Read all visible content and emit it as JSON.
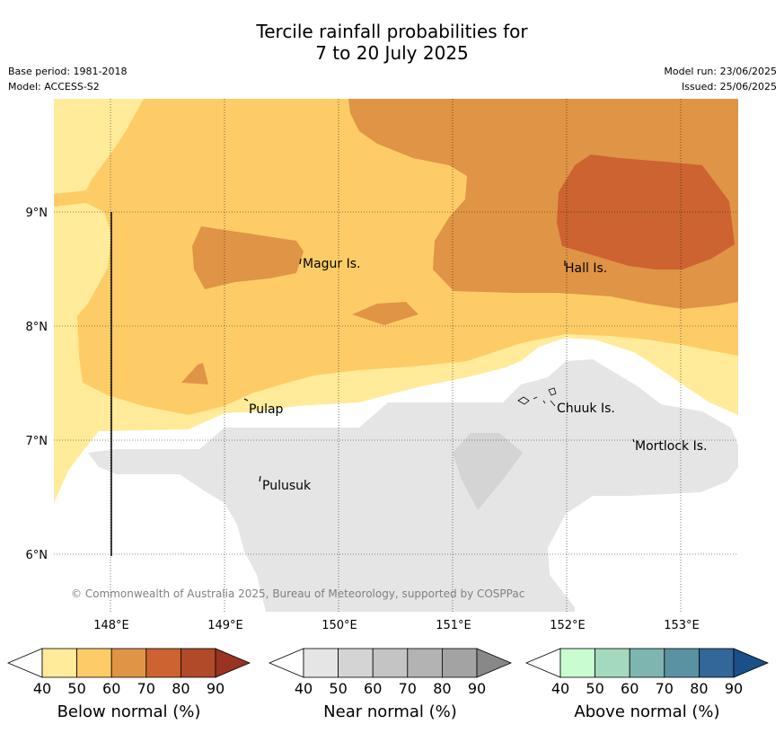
{
  "title_line1": "Tercile rainfall probabilities for",
  "title_line2": "7 to 20 July 2025",
  "base_period": "Base period: 1981-2018",
  "model": "Model: ACCESS-S2",
  "model_run": "Model run: 23/06/2025",
  "issued": "Issued: 25/06/2025",
  "copyright": "© Commonwealth of Australia 2025, Bureau of Meteorology, supported by COSPPac",
  "lon_ticks": [
    "148°E",
    "149°E",
    "150°E",
    "151°E",
    "152°E",
    "153°E"
  ],
  "lat_ticks": [
    "9°N",
    "8°N",
    "7°N",
    "6°N"
  ],
  "places": {
    "magur": "Magur Is.",
    "hall": "Hall Is.",
    "pulap": "Pulap",
    "chuuk": "Chuuk Is.",
    "mortlock": "Mortlock Is.",
    "pulusuk": "Pulusuk"
  },
  "colorbars": {
    "below": {
      "label": "Below normal (%)",
      "ticks": [
        "40",
        "50",
        "60",
        "70",
        "80",
        "90"
      ],
      "colors": [
        "#ffffff",
        "#ffeb99",
        "#fecc66",
        "#e09445",
        "#cc6330",
        "#b04a28",
        "#993322"
      ]
    },
    "near": {
      "label": "Near normal (%)",
      "ticks": [
        "40",
        "50",
        "60",
        "70",
        "80",
        "90"
      ],
      "colors": [
        "#ffffff",
        "#e5e5e5",
        "#d4d4d4",
        "#c4c4c4",
        "#b3b3b3",
        "#a3a3a3",
        "#888888"
      ]
    },
    "above": {
      "label": "Above normal (%)",
      "ticks": [
        "40",
        "50",
        "60",
        "70",
        "80",
        "90"
      ],
      "colors": [
        "#ffffff",
        "#c9fdd0",
        "#a5d9be",
        "#7fb5b0",
        "#5b92a2",
        "#336699",
        "#1a4f88"
      ]
    }
  }
}
